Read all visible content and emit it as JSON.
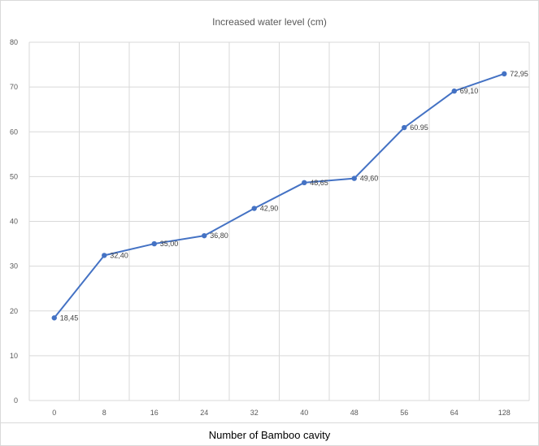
{
  "chart_data": {
    "type": "line",
    "title": "Increased water level (cm)",
    "xlabel": "Number of Bamboo cavity",
    "ylabel": "",
    "categories": [
      "0",
      "8",
      "16",
      "24",
      "32",
      "40",
      "48",
      "56",
      "64",
      "128"
    ],
    "series": [
      {
        "values": [
          18.45,
          32.4,
          35.0,
          36.8,
          42.9,
          48.65,
          49.6,
          60.95,
          69.1,
          72.95
        ],
        "data_labels": [
          "18,45",
          "32,40",
          "35,00",
          "36,80",
          "42,90",
          "48,65",
          "49,60",
          "60.95",
          "69,10",
          "72,95"
        ],
        "color": "#4472c4"
      }
    ],
    "ylim": [
      0,
      80
    ],
    "yticks": [
      0,
      10,
      20,
      30,
      40,
      50,
      60,
      70,
      80
    ],
    "grid": true,
    "legend": "none"
  },
  "colors": {
    "line": "#4472c4",
    "grid": "#d9d9d9",
    "axis_text": "#595959"
  }
}
